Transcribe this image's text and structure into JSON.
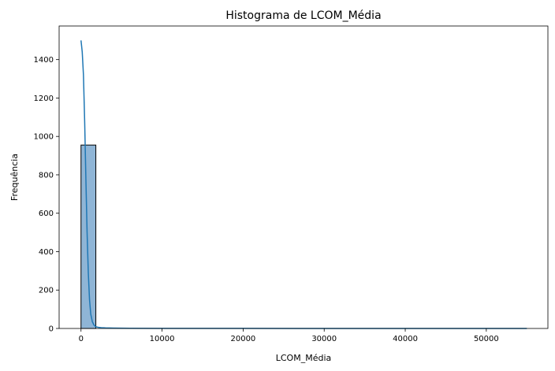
{
  "chart_data": {
    "type": "bar",
    "title": "Histograma de LCOM_Média",
    "xlabel": "LCOM_Média",
    "ylabel": "Frequência",
    "xlim": [
      -2700,
      57600
    ],
    "ylim": [
      0,
      1575
    ],
    "xticks": [
      0,
      10000,
      20000,
      30000,
      40000,
      50000
    ],
    "xtick_labels": [
      "0",
      "10000",
      "20000",
      "30000",
      "40000",
      "50000"
    ],
    "yticks": [
      0,
      200,
      400,
      600,
      800,
      1000,
      1200,
      1400
    ],
    "ytick_labels": [
      "0",
      "200",
      "400",
      "600",
      "800",
      "1000",
      "1200",
      "1400"
    ],
    "grid": false,
    "bars": [
      {
        "x0": 0,
        "x1": 1830,
        "count": 955
      }
    ],
    "kde": {
      "x": [
        0,
        150,
        300,
        450,
        600,
        750,
        900,
        1050,
        1200,
        1400,
        1600,
        1800,
        2100,
        2500,
        3000,
        4000,
        6000,
        10000,
        20000,
        30000,
        40000,
        50000,
        55000
      ],
      "y": [
        1500,
        1440,
        1320,
        1080,
        780,
        500,
        290,
        150,
        75,
        35,
        18,
        10,
        6,
        4,
        3,
        2,
        1,
        0.5,
        0.3,
        0.2,
        0.1,
        0.1,
        0.1
      ]
    },
    "colors": {
      "bar_fill": "#8fb5d6",
      "bar_edge": "#000000",
      "kde_line": "#1f77b4"
    }
  }
}
